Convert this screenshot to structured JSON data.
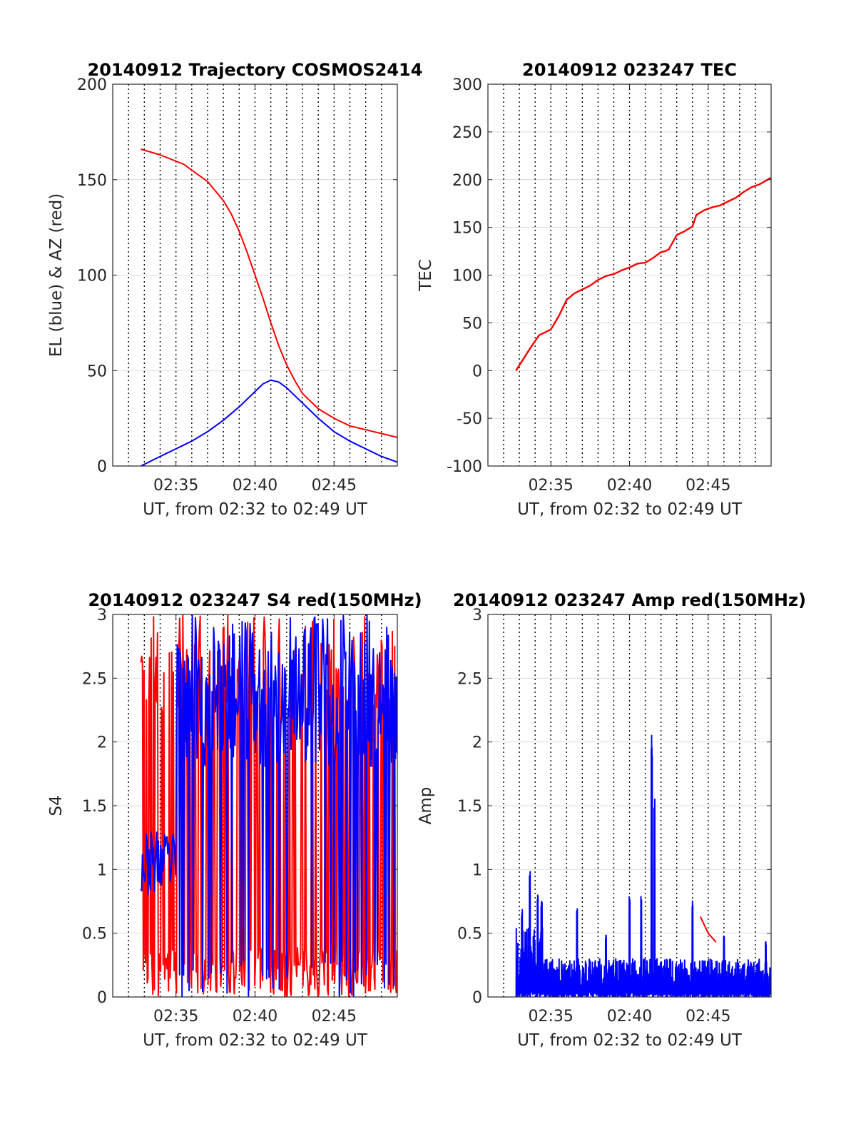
{
  "figure": {
    "background": "#ffffff",
    "colors": {
      "red": "#ff0000",
      "blue": "#0000ff",
      "axis": "#262626",
      "grid": "#dcdcdc",
      "dotted": "#000000"
    }
  },
  "chart_data": [
    {
      "type": "line",
      "title": "20140912 Trajectory COSMOS2414",
      "xlabel": "UT, from 02:32 to 02:49 UT",
      "ylabel": "EL (blue) & AZ (red)",
      "xlim": [
        "02:31:00",
        "02:49:00"
      ],
      "ylim": [
        0,
        200
      ],
      "x_ticks": [
        "02:35",
        "02:40",
        "02:45"
      ],
      "y_ticks": [
        "0",
        "50",
        "100",
        "150",
        "200"
      ],
      "grid": true,
      "series": [
        {
          "color": "#ff0000",
          "x": [
            "02:32:47",
            "02:34:00",
            "02:35:30",
            "02:37:00",
            "02:38:00",
            "02:38:30",
            "02:39:00",
            "02:39:30",
            "02:40:00",
            "02:40:30",
            "02:41:00",
            "02:41:30",
            "02:42:00",
            "02:42:30",
            "02:43:00",
            "02:44:00",
            "02:45:00",
            "02:46:00",
            "02:47:00",
            "02:48:00",
            "02:49:00"
          ],
          "values": [
            166,
            163,
            158,
            149,
            139,
            132,
            123,
            112,
            100,
            88,
            75,
            63,
            53,
            45,
            38,
            30,
            25,
            21,
            19,
            17,
            15
          ]
        },
        {
          "color": "#0000ff",
          "x": [
            "02:32:47",
            "02:34:00",
            "02:35:00",
            "02:36:00",
            "02:37:00",
            "02:38:00",
            "02:39:00",
            "02:40:00",
            "02:40:30",
            "02:41:00",
            "02:41:30",
            "02:42:00",
            "02:43:00",
            "02:44:00",
            "02:45:00",
            "02:46:00",
            "02:47:00",
            "02:48:00",
            "02:49:00"
          ],
          "values": [
            0,
            5,
            9,
            13,
            18,
            24,
            31,
            39,
            43,
            45,
            44,
            41,
            33,
            25,
            18,
            13,
            9,
            5,
            2
          ]
        }
      ]
    },
    {
      "type": "line",
      "title": "20140912 023247 TEC",
      "xlabel": "UT, from 02:32 to 02:49 UT",
      "ylabel": "TEC",
      "xlim": [
        "02:31:00",
        "02:49:00"
      ],
      "ylim": [
        -100,
        300
      ],
      "x_ticks": [
        "02:35",
        "02:40",
        "02:45"
      ],
      "y_ticks": [
        "-100",
        "-50",
        "0",
        "50",
        "100",
        "150",
        "200",
        "250",
        "300"
      ],
      "grid": true,
      "series": [
        {
          "color": "#ff0000",
          "x": [
            "02:32:47",
            "02:33:15",
            "02:33:45",
            "02:34:15",
            "02:34:45",
            "02:35:00",
            "02:35:30",
            "02:36:00",
            "02:36:30",
            "02:37:00",
            "02:37:30",
            "02:38:00",
            "02:38:30",
            "02:39:00",
            "02:39:30",
            "02:40:00",
            "02:40:30",
            "02:41:00",
            "02:41:30",
            "02:42:00",
            "02:42:15",
            "02:42:30",
            "02:43:00",
            "02:43:30",
            "02:44:00",
            "02:44:15",
            "02:44:45",
            "02:45:15",
            "02:45:45",
            "02:46:15",
            "02:46:45",
            "02:47:15",
            "02:47:45",
            "02:48:15",
            "02:49:00"
          ],
          "values": [
            0,
            12,
            25,
            37,
            41,
            43,
            57,
            74,
            81,
            85,
            89,
            95,
            99,
            101,
            105,
            108,
            112,
            113,
            118,
            124,
            125,
            127,
            142,
            146,
            151,
            163,
            168,
            171,
            173,
            177,
            181,
            187,
            192,
            195,
            202
          ]
        }
      ]
    },
    {
      "type": "line",
      "title": "20140912 023247 S4 red(150MHz)",
      "xlabel": "UT, from 02:32 to 02:49 UT",
      "ylabel": "S4",
      "xlim": [
        "02:31:00",
        "02:49:00"
      ],
      "ylim": [
        0,
        3
      ],
      "x_ticks": [
        "02:35",
        "02:40",
        "02:45"
      ],
      "y_ticks": [
        "0",
        "0.5",
        "1",
        "1.5",
        "2",
        "2.5",
        "3"
      ],
      "grid": true,
      "series": [
        {
          "color": "#ff0000",
          "x_range": [
            "02:32:47",
            "02:49:00"
          ],
          "values": "dense, oscillating between 0 and 3 throughout"
        },
        {
          "color": "#0000ff",
          "x_range": [
            "02:32:47",
            "02:49:00"
          ],
          "values": "about 0.8–1.4 until 02:35, then about 1.8–3 with drops to 0"
        }
      ]
    },
    {
      "type": "line",
      "title": "20140912 023247 Amp red(150MHz)",
      "xlabel": "UT, from 02:32 to 02:49 UT",
      "ylabel": "Amp",
      "xlim": [
        "02:31:00",
        "02:49:00"
      ],
      "ylim": [
        0,
        3
      ],
      "x_ticks": [
        "02:35",
        "02:40",
        "02:45"
      ],
      "y_ticks": [
        "0",
        "0.5",
        "1",
        "1.5",
        "2",
        "2.5",
        "3"
      ],
      "grid": true,
      "series": [
        {
          "color": "#0000ff",
          "x": [
            "02:33:10",
            "02:33:40",
            "02:34:10",
            "02:34:25",
            "02:36:40",
            "02:38:30",
            "02:40:00",
            "02:40:45",
            "02:41:25",
            "02:41:35",
            "02:44:00",
            "02:46:00",
            "02:48:40"
          ],
          "values": [
            0.7,
            1.02,
            0.84,
            0.75,
            0.7,
            0.5,
            0.82,
            0.8,
            2.1,
            1.6,
            0.78,
            0.5,
            0.45
          ]
        },
        {
          "color": "#ff0000",
          "x": [
            "02:44:30",
            "02:45:00",
            "02:45:30"
          ],
          "values": [
            0.63,
            0.5,
            0.43
          ]
        }
      ]
    }
  ]
}
